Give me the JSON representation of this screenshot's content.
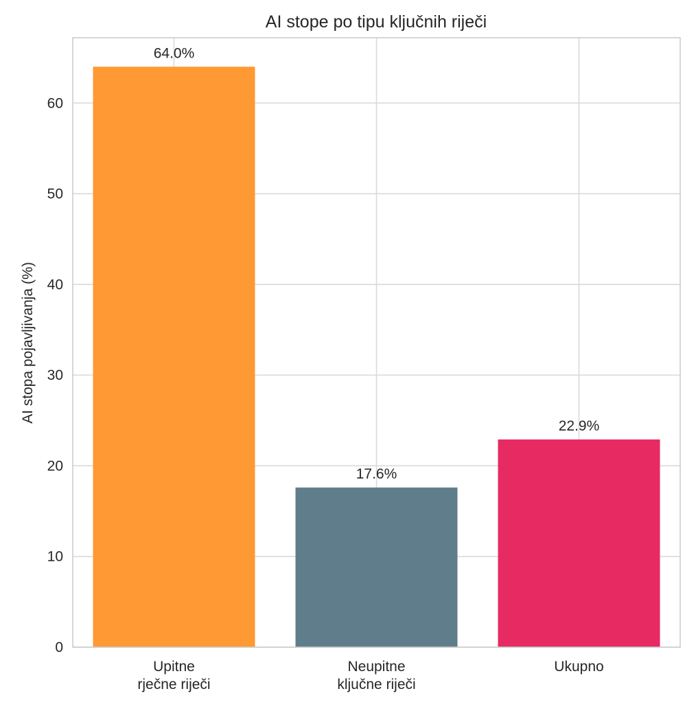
{
  "chart_data": {
    "type": "bar",
    "title": "AI stope po tipu ključnih riječi",
    "xlabel": "",
    "ylabel": "AI stopa pojavljivanja (%)",
    "categories": [
      [
        "Upitne",
        "rječne riječi"
      ],
      [
        "Neupitne",
        "ključne riječi"
      ],
      [
        "Ukupno"
      ]
    ],
    "values": [
      64.0,
      17.6,
      22.9
    ],
    "value_labels": [
      "64.0%",
      "17.6%",
      "22.9%"
    ],
    "colors": [
      "#FF9933",
      "#607D8B",
      "#E72A62"
    ],
    "ylim": [
      0,
      67.2
    ],
    "yticks": [
      0,
      10,
      20,
      30,
      40,
      50,
      60
    ],
    "grid": true,
    "legend": "none"
  }
}
